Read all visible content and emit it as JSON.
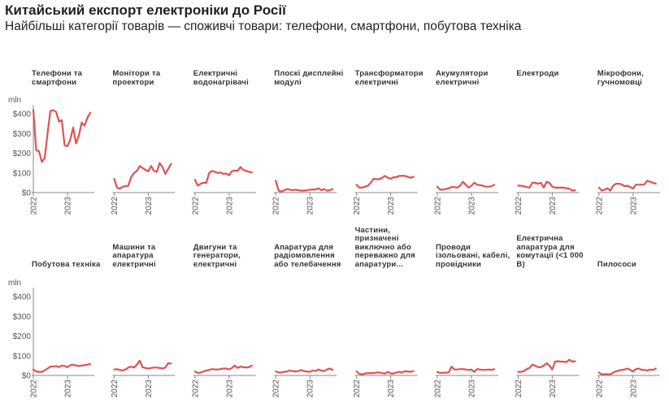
{
  "header": {
    "title": "Китайський експорт електроніки до Росії",
    "subtitle": "Найбільші категорії товарів — споживчі товари: телефони, смартфони, побутова техніка"
  },
  "chart_data": {
    "type": "line",
    "layout": "small-multiples",
    "unit_label": "mln",
    "y_ticks": [
      0,
      100,
      200,
      300,
      400
    ],
    "y_tick_labels": [
      "$0",
      "$100",
      "$200",
      "$300",
      "$400"
    ],
    "ylim": [
      0,
      450
    ],
    "x_unit": "month index from Jan 2022",
    "x_ticks": [
      0,
      12
    ],
    "x_tick_labels": [
      "2022",
      "2023"
    ],
    "line_color": "#e05252",
    "panels": [
      {
        "title": "Телефони та смартфони",
        "values": [
          420,
          215,
          210,
          155,
          175,
          300,
          415,
          418,
          410,
          360,
          368,
          240,
          235,
          270,
          330,
          250,
          290,
          355,
          340,
          380,
          405
        ]
      },
      {
        "title": "Монітори та проектори",
        "values": [
          70,
          25,
          20,
          30,
          32,
          35,
          80,
          100,
          110,
          135,
          125,
          115,
          108,
          135,
          110,
          105,
          150,
          130,
          95,
          120,
          145
        ]
      },
      {
        "title": "Електричні водонагрівачі",
        "values": [
          65,
          35,
          45,
          50,
          50,
          100,
          110,
          105,
          100,
          102,
          95,
          97,
          88,
          108,
          112,
          110,
          130,
          115,
          110,
          105,
          103
        ]
      },
      {
        "title": "Плоскі дисплейні модулі",
        "values": [
          60,
          10,
          5,
          12,
          18,
          15,
          12,
          15,
          12,
          10,
          10,
          12,
          15,
          16,
          15,
          22,
          12,
          18,
          10,
          12,
          18
        ]
      },
      {
        "title": "Трансформатори електричні",
        "values": [
          40,
          25,
          25,
          30,
          35,
          50,
          70,
          68,
          68,
          75,
          85,
          75,
          70,
          78,
          78,
          85,
          85,
          85,
          80,
          75,
          80
        ]
      },
      {
        "title": "Акумулятори електричні",
        "values": [
          30,
          15,
          15,
          18,
          22,
          28,
          28,
          25,
          35,
          55,
          40,
          25,
          35,
          50,
          40,
          38,
          35,
          30,
          30,
          32,
          40
        ]
      },
      {
        "title": "Електроди",
        "values": [
          35,
          35,
          32,
          28,
          25,
          50,
          50,
          45,
          50,
          25,
          55,
          50,
          30,
          25,
          25,
          25,
          25,
          22,
          20,
          10,
          12
        ]
      },
      {
        "title": "Мікрофони, гучномовці",
        "values": [
          25,
          10,
          15,
          22,
          10,
          35,
          45,
          45,
          42,
          32,
          35,
          28,
          20,
          40,
          40,
          40,
          42,
          60,
          55,
          50,
          45
        ]
      },
      {
        "title": "Побутова техніка",
        "values": [
          30,
          20,
          18,
          18,
          25,
          35,
          45,
          45,
          48,
          42,
          50,
          48,
          42,
          52,
          55,
          50,
          48,
          50,
          52,
          55,
          58
        ]
      },
      {
        "title": "Машини та апаратура електричні",
        "values": [
          30,
          32,
          28,
          25,
          30,
          40,
          45,
          40,
          55,
          75,
          42,
          38,
          35,
          38,
          40,
          40,
          38,
          35,
          40,
          62,
          60
        ]
      },
      {
        "title": "Двигуни та генератори, електричні",
        "values": [
          20,
          12,
          15,
          20,
          25,
          28,
          32,
          30,
          30,
          32,
          35,
          35,
          30,
          38,
          50,
          38,
          45,
          42,
          40,
          42,
          50
        ]
      },
      {
        "title": "Апаратура для радіомовлення або телебачення",
        "values": [
          20,
          15,
          15,
          18,
          20,
          25,
          22,
          20,
          22,
          28,
          22,
          20,
          18,
          25,
          22,
          30,
          25,
          22,
          30,
          35,
          28
        ]
      },
      {
        "title": "Частини, призначені виключно або переважно для апаратури...",
        "values": [
          20,
          8,
          5,
          10,
          12,
          12,
          12,
          15,
          15,
          12,
          10,
          18,
          10,
          10,
          15,
          18,
          15,
          22,
          20,
          18,
          22
        ]
      },
      {
        "title": "Проводи ізольовані, кабелі, провідники",
        "values": [
          18,
          12,
          14,
          14,
          15,
          45,
          30,
          30,
          32,
          32,
          30,
          28,
          30,
          18,
          32,
          30,
          28,
          28,
          30,
          28,
          32
        ]
      },
      {
        "title": "Електрична апаратура для комутації (<1 000 В)",
        "values": [
          18,
          18,
          22,
          32,
          38,
          55,
          50,
          42,
          42,
          50,
          62,
          50,
          30,
          70,
          72,
          70,
          70,
          68,
          80,
          70,
          72
        ]
      },
      {
        "title": "Пилососи",
        "values": [
          15,
          5,
          6,
          6,
          5,
          15,
          20,
          25,
          28,
          30,
          35,
          28,
          20,
          32,
          35,
          28,
          28,
          25,
          30,
          28,
          35
        ]
      }
    ]
  }
}
